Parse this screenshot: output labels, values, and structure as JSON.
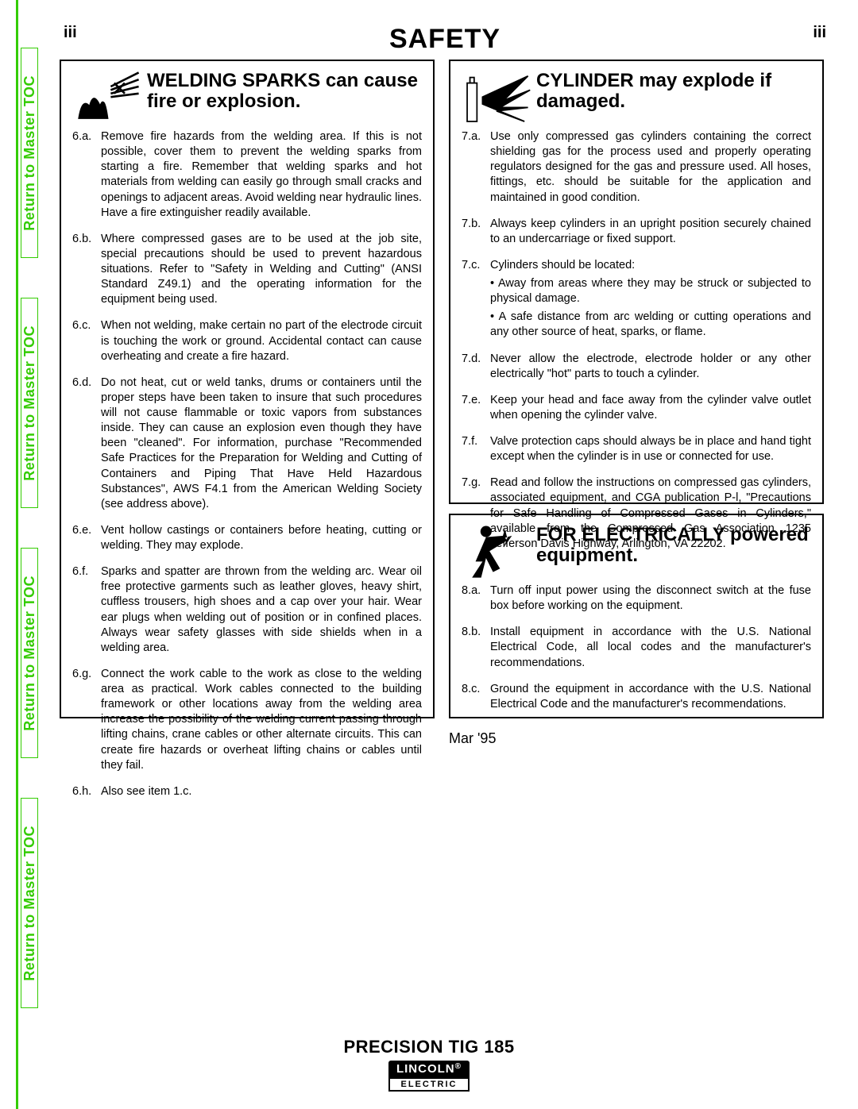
{
  "colors": {
    "accent": "#33cc00",
    "text": "#000000",
    "bg": "#ffffff"
  },
  "nav_label": "Return to Master TOC",
  "header": {
    "page_num": "iii",
    "title": "SAFETY"
  },
  "date": "Mar '95",
  "footer": {
    "model": "PRECISION TIG 185",
    "brand_top": "LINCOLN",
    "brand_reg": "®",
    "brand_bot": "ELECTRIC"
  },
  "section6": {
    "title": "WELDING SPARKS can cause fire or explosion.",
    "items": [
      {
        "n": "6.a.",
        "t": "Remove fire hazards from the welding area. If this is not possible, cover them to prevent the welding sparks from starting a fire. Remember that welding sparks and hot materials from welding can easily go through small cracks and openings to adjacent areas. Avoid welding near hydraulic lines. Have a fire extinguisher readily available."
      },
      {
        "n": "6.b.",
        "t": "Where compressed gases are to be used at the job site, special precautions should be used to prevent hazardous situations. Refer to \"Safety in Welding and Cutting\" (ANSI Standard Z49.1) and the operating information for the equipment being used."
      },
      {
        "n": "6.c.",
        "t": "When not welding, make certain no part of the electrode circuit is touching the work or ground. Accidental contact can cause overheating and create a fire hazard."
      },
      {
        "n": "6.d.",
        "t": "Do not heat, cut or weld tanks, drums or containers until the proper steps have been taken to insure that such procedures will not cause flammable or toxic vapors from substances inside. They can cause an explosion even though they have been \"cleaned\". For information, purchase \"Recommended Safe Practices for the Preparation for Welding and Cutting of Containers and Piping That Have Held Hazardous Substances\", AWS F4.1 from the American Welding Society (see address above)."
      },
      {
        "n": "6.e.",
        "t": "Vent hollow castings or containers before heating, cutting or welding. They may explode."
      },
      {
        "n": "6.f.",
        "t": "Sparks and spatter are thrown from the welding arc. Wear oil free protective garments such as leather gloves, heavy shirt, cuffless trousers, high shoes and a cap over your hair. Wear ear plugs when welding out of position or in confined places. Always wear safety glasses with side shields when in a welding area."
      },
      {
        "n": "6.g.",
        "t": "Connect the work cable to the work as close to the welding area as practical. Work cables connected to the building framework or other locations away from the welding area increase the possibility of the welding current passing through lifting chains, crane cables or other alternate circuits. This can create fire hazards or overheat lifting chains or cables until they fail."
      },
      {
        "n": "6.h.",
        "t": "Also see item 1.c."
      }
    ]
  },
  "section7": {
    "title": "CYLINDER may explode if damaged.",
    "items": [
      {
        "n": "7.a.",
        "t": "Use only compressed gas cylinders containing the correct shielding gas for the process used and properly operating regulators designed for the gas and pressure used. All hoses, fittings, etc. should be suitable for the application and maintained in good condition."
      },
      {
        "n": "7.b.",
        "t": "Always keep cylinders in an upright position securely chained to an undercarriage or fixed support."
      },
      {
        "n": "7.c.",
        "t": "Cylinders should be located:",
        "subs": [
          "Away from areas where they may be struck or subjected to physical damage.",
          "A safe distance from arc welding or cutting operations and any other source of heat, sparks, or flame."
        ]
      },
      {
        "n": "7.d.",
        "t": "Never allow the electrode, electrode holder or any other electrically \"hot\" parts to touch a cylinder."
      },
      {
        "n": "7.e.",
        "t": "Keep your head and face away from the cylinder valve outlet when opening the cylinder valve."
      },
      {
        "n": "7.f.",
        "t": "Valve protection caps should always be in place and hand tight except when the cylinder is in use or connected for use."
      },
      {
        "n": "7.g.",
        "t": "Read and follow the instructions on compressed gas cylinders, associated equipment, and CGA publication P-l, \"Precautions for Safe Handling of Compressed Gases in Cylinders,\" available from the Compressed Gas Association 1235 Jefferson Davis Highway, Arlington, VA 22202."
      }
    ]
  },
  "section8": {
    "title": "FOR ELECTRICALLY powered equipment.",
    "items": [
      {
        "n": "8.a.",
        "t": "Turn off input power using the disconnect switch at the fuse box before working on the equipment."
      },
      {
        "n": "8.b.",
        "t": "Install equipment in accordance with the U.S. National Electrical Code, all local codes and the manufacturer's recommendations."
      },
      {
        "n": "8.c.",
        "t": "Ground the equipment in accordance with the U.S. National Electrical Code and the manufacturer's recommendations."
      }
    ]
  }
}
